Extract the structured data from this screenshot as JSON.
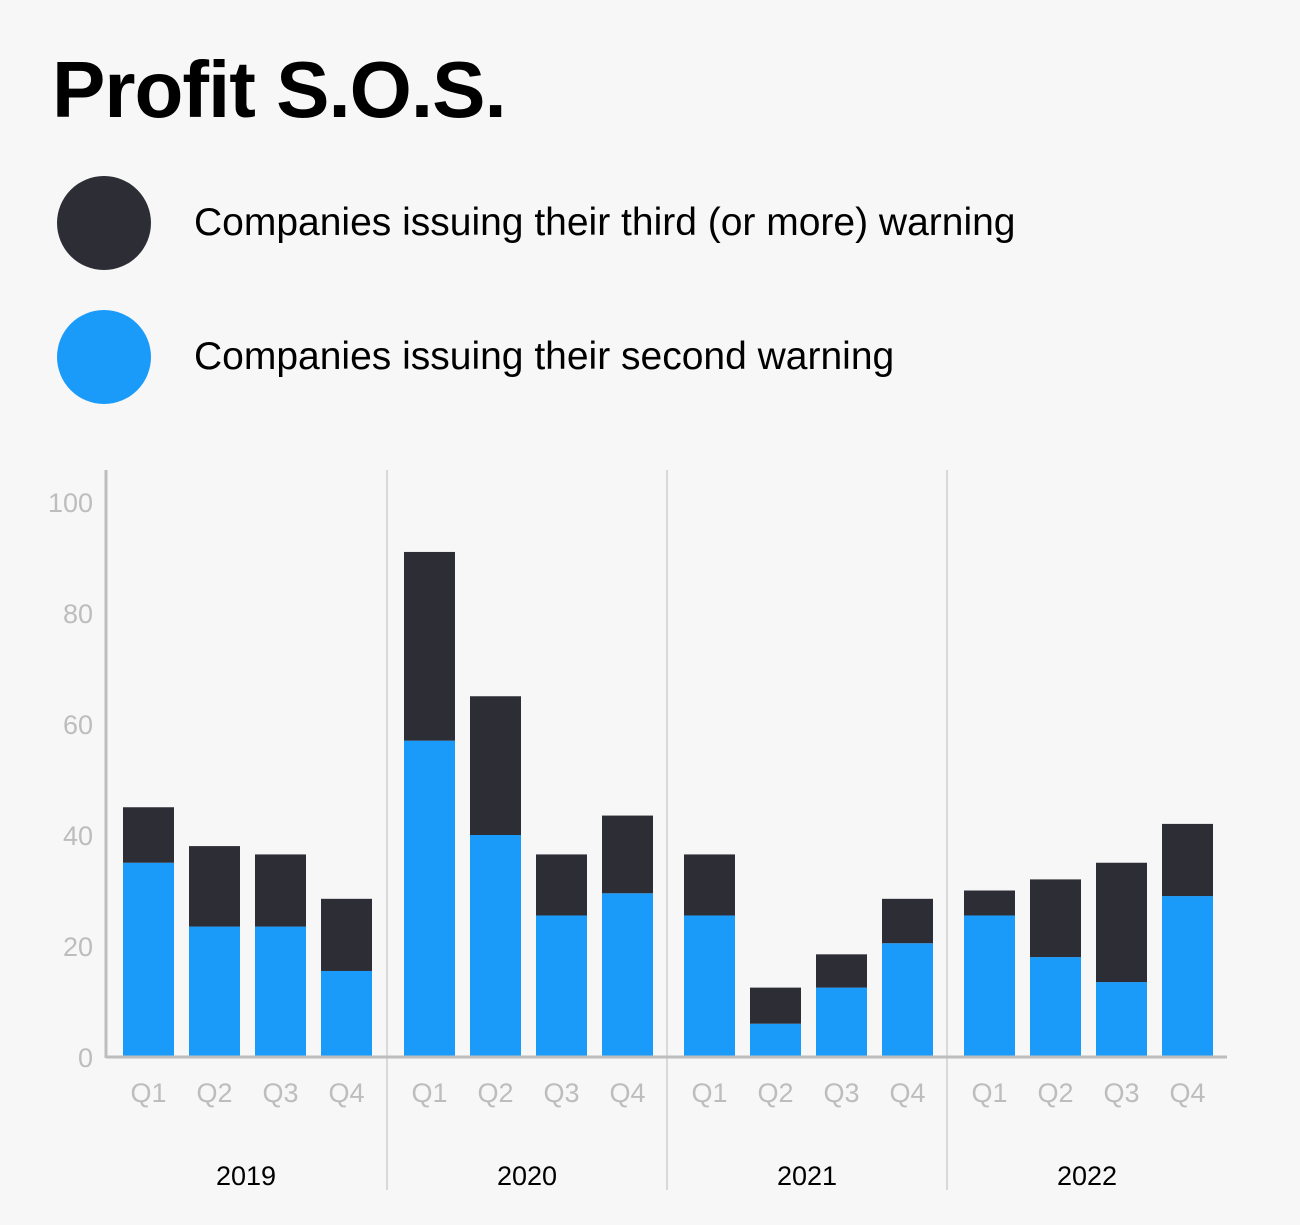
{
  "chart_data": {
    "type": "bar",
    "stacked": true,
    "title": "Profit S.O.S.",
    "xlabel": "",
    "ylabel": "",
    "ylim": [
      0,
      100
    ],
    "yticks": [
      0,
      20,
      40,
      60,
      80,
      100
    ],
    "groups": [
      {
        "label": "2019",
        "categories": [
          "Q1",
          "Q2",
          "Q3",
          "Q4"
        ]
      },
      {
        "label": "2020",
        "categories": [
          "Q1",
          "Q2",
          "Q3",
          "Q4"
        ]
      },
      {
        "label": "2021",
        "categories": [
          "Q1",
          "Q2",
          "Q3",
          "Q4"
        ]
      },
      {
        "label": "2022",
        "categories": [
          "Q1",
          "Q2",
          "Q3",
          "Q4"
        ]
      }
    ],
    "series": [
      {
        "name": "Companies issuing their second warning",
        "color": "#1b9bf9",
        "values": [
          35,
          23.5,
          23.5,
          15.5,
          57,
          40,
          25.5,
          29.5,
          25.5,
          6,
          12.5,
          20.5,
          25.5,
          18,
          13.5,
          29
        ]
      },
      {
        "name": "Companies issuing their third (or more) warning",
        "color": "#2d2d36",
        "values": [
          10,
          14.5,
          13,
          13,
          34,
          25,
          11,
          14,
          11,
          6.5,
          6,
          8,
          4.5,
          14,
          21.5,
          13
        ]
      }
    ],
    "grid": false,
    "legend": "top"
  },
  "legend": {
    "items": [
      {
        "label": "Companies issuing their third (or more) warning",
        "color": "#2d2d36"
      },
      {
        "label": "Companies issuing their second warning",
        "color": "#1b9bf9"
      }
    ]
  }
}
